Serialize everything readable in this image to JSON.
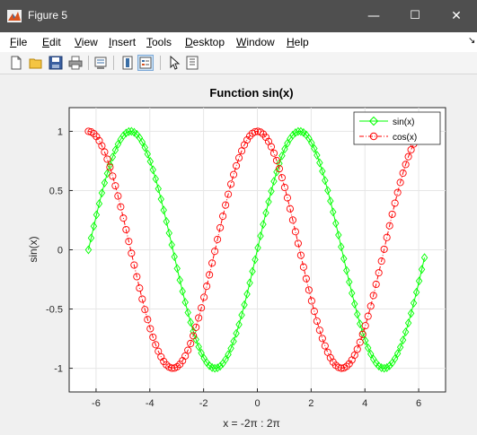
{
  "window": {
    "title": "Figure 5",
    "minimize": "—",
    "maximize": "☐",
    "close": "✕"
  },
  "menu": [
    "File",
    "Edit",
    "View",
    "Insert",
    "Tools",
    "Desktop",
    "Window",
    "Help"
  ],
  "toolbar_icons": [
    "new-figure-icon",
    "open-file-icon",
    "save-icon",
    "print-icon",
    "print-preview-icon",
    "colorbar-icon",
    "legend-icon",
    "pointer-icon",
    "property-editor-icon"
  ],
  "chart_data": {
    "type": "line",
    "title": "Function sin(x)",
    "xlabel": "x = -2π : 2π",
    "ylabel": "sin(x)",
    "xlim": [
      -7,
      7
    ],
    "ylim": [
      -1.2,
      1.2
    ],
    "xticks": [
      -6,
      -4,
      -2,
      0,
      2,
      4,
      6
    ],
    "xtick_labels": [
      "-6",
      "-4",
      "-2",
      "0",
      "2",
      "4",
      "6"
    ],
    "yticks": [
      -1,
      -0.5,
      0,
      0.5,
      1
    ],
    "ytick_labels": [
      "-1",
      "-0.5",
      "0",
      "0.5",
      "1"
    ],
    "x_start": -6.2832,
    "x_step": 0.1,
    "grid": true,
    "legend_position": "top-right",
    "series": [
      {
        "name": "sin(x)",
        "function": "sin",
        "color": "#00ff00",
        "line_style": "solid",
        "marker": "diamond"
      },
      {
        "name": "cos(x)",
        "function": "cos",
        "color": "#ff0000",
        "line_style": "dash-dot",
        "marker": "circle"
      }
    ]
  }
}
